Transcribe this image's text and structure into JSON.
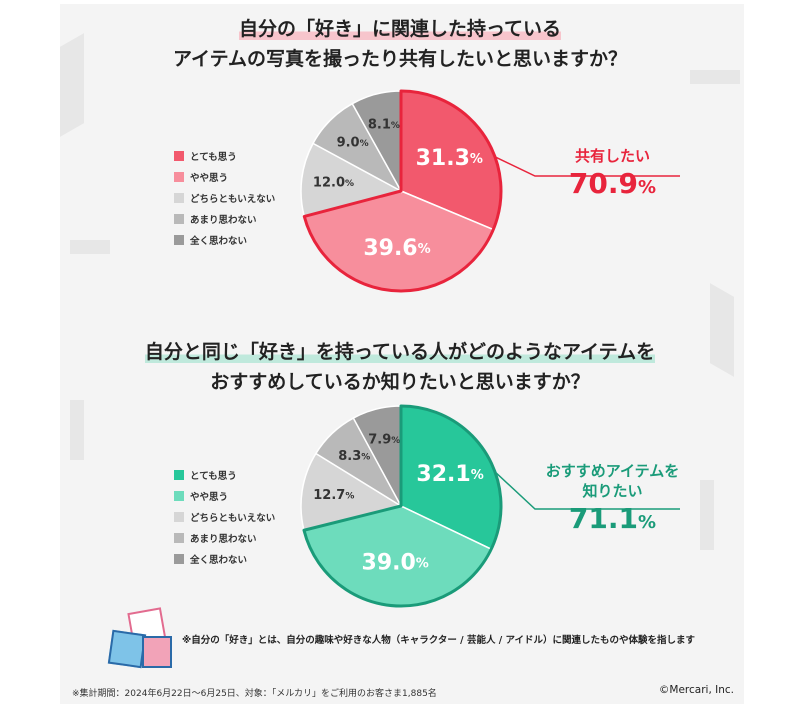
{
  "chart_data": [
    {
      "type": "pie",
      "title": [
        "自分の「好き」に関連した持っている",
        "アイテムの写真を撮ったり共有したいと思いますか？"
      ],
      "categories": [
        "とても思う",
        "やや思う",
        "どちらともいえない",
        "あまり思わない",
        "全く思わない"
      ],
      "values": [
        31.3,
        39.6,
        12.0,
        9.0,
        8.1
      ],
      "value_labels": [
        "31.3",
        "39.6",
        "12.0",
        "9.0",
        "8.1"
      ],
      "colors": [
        "#f2596d",
        "#f78e9c",
        "#d6d6d6",
        "#b9b9b9",
        "#9a9a9a"
      ],
      "highlight_color": "#e8243c",
      "summary": {
        "title": [
          "共有したい"
        ],
        "value": "70.9"
      },
      "legend_position": "left"
    },
    {
      "type": "pie",
      "title": [
        "自分と同じ「好き」を持っている人がどのようなアイテムを",
        "おすすめしているか知りたいと思いますか？"
      ],
      "categories": [
        "とても思う",
        "やや思う",
        "どちらともいえない",
        "あまり思わない",
        "全く思わない"
      ],
      "values": [
        32.1,
        39.0,
        12.7,
        8.3,
        7.9
      ],
      "value_labels": [
        "32.1",
        "39.0",
        "12.7",
        "8.3",
        "7.9"
      ],
      "colors": [
        "#27c79a",
        "#6ddcbc",
        "#d6d6d6",
        "#b9b9b9",
        "#9a9a9a"
      ],
      "highlight_color": "#1a9b79",
      "summary": {
        "title": [
          "おすすめアイテムを",
          "知りたい"
        ],
        "value": "71.1"
      },
      "legend_position": "left"
    }
  ],
  "percent_sign": "%",
  "footnote": "※自分の「好き」とは、自分の趣味や好きな人物（キャラクター / 芸能人 / アイドル）に関連したものや体験を指します",
  "survey_note": "※集計期間：2024年6月22日～6月25日、対象：「メルカリ」をご利用のお客さま1,885名",
  "copyright": "©Mercari, Inc."
}
